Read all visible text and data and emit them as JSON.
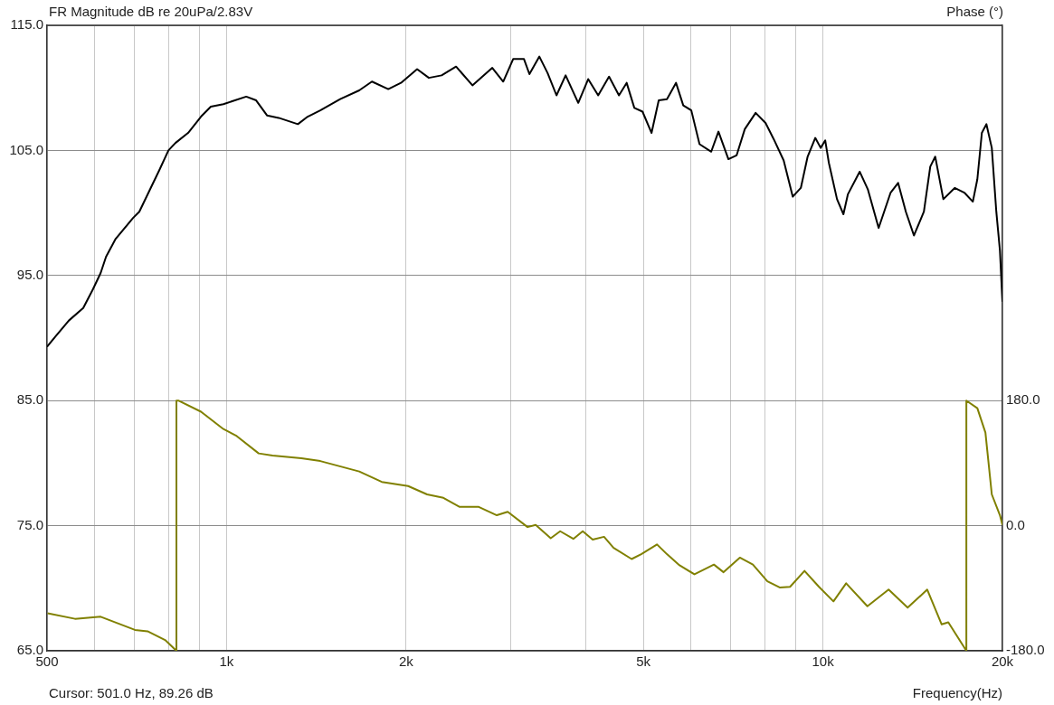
{
  "chart_data": {
    "type": "line",
    "ylabel": "FR Magnitude dB re 20uPa/2.83V",
    "y2label": "Phase (°)",
    "xlabel": "Frequency(Hz)",
    "annotations": [
      "Cursor:  501.0 Hz, 89.26 dB"
    ],
    "log": "x",
    "grid": true,
    "legend": false,
    "marker": "none",
    "line_style": "solid",
    "xlim": [
      500,
      20000
    ],
    "xticks": [
      {
        "value": 500,
        "label": "500"
      },
      {
        "value": 600,
        "label": null
      },
      {
        "value": 700,
        "label": null
      },
      {
        "value": 800,
        "label": null
      },
      {
        "value": 900,
        "label": null
      },
      {
        "value": 1000,
        "label": "1k"
      },
      {
        "value": 2000,
        "label": "2k"
      },
      {
        "value": 3000,
        "label": null
      },
      {
        "value": 4000,
        "label": null
      },
      {
        "value": 5000,
        "label": "5k"
      },
      {
        "value": 6000,
        "label": null
      },
      {
        "value": 7000,
        "label": null
      },
      {
        "value": 8000,
        "label": null
      },
      {
        "value": 9000,
        "label": null
      },
      {
        "value": 10000,
        "label": "10k"
      },
      {
        "value": 20000,
        "label": "20k"
      }
    ],
    "ylim": [
      65,
      115
    ],
    "yticks": [
      {
        "value": 65,
        "label": "65.0"
      },
      {
        "value": 75,
        "label": "75.0"
      },
      {
        "value": 85,
        "label": "85.0"
      },
      {
        "value": 95,
        "label": "95.0"
      },
      {
        "value": 105,
        "label": "105.0"
      },
      {
        "value": 115,
        "label": "115.0"
      }
    ],
    "y2lim": [
      -180,
      720
    ],
    "y2ticks": [
      {
        "value": -180,
        "label": "-180.0"
      },
      {
        "value": 0,
        "label": "0.0"
      },
      {
        "value": 180,
        "label": "180.0"
      }
    ],
    "series": [
      {
        "color": "#000000",
        "x": [
          500,
          516,
          544,
          575,
          597,
          615,
          628,
          651,
          697,
          714,
          748,
          771,
          799,
          821,
          862,
          906,
          941,
          988,
          1079,
          1121,
          1169,
          1223,
          1317,
          1368,
          1436,
          1551,
          1669,
          1753,
          1867,
          1961,
          2087,
          2184,
          2294,
          2426,
          2584,
          2790,
          2910,
          3024,
          3153,
          3220,
          3346,
          3453,
          3575,
          3703,
          3888,
          4040,
          4199,
          4379,
          4550,
          4687,
          4828,
          4983,
          5160,
          5305,
          5476,
          5671,
          5832,
          6016,
          6210,
          6497,
          6681,
          6943,
          7165,
          7396,
          7713,
          8013,
          8270,
          8594,
          8900,
          9183,
          9427,
          9709,
          9915,
          10090,
          10233,
          10560,
          10824,
          11014,
          11525,
          11892,
          12401,
          12981,
          13371,
          13774,
          14211,
          14769,
          15136,
          15430,
          15920,
          16634,
          17286,
          17841,
          18154,
          18473,
          18798,
          19196,
          19533,
          19808,
          20000
        ],
        "values": [
          89.3,
          90.1,
          91.4,
          92.4,
          93.9,
          95.2,
          96.5,
          97.9,
          99.6,
          100.1,
          102.1,
          103.4,
          105.0,
          105.6,
          106.4,
          107.7,
          108.5,
          108.7,
          109.3,
          109.0,
          107.8,
          107.6,
          107.1,
          107.7,
          108.2,
          109.1,
          109.8,
          110.5,
          109.9,
          110.4,
          111.5,
          110.8,
          111.0,
          111.7,
          110.2,
          111.6,
          110.5,
          112.3,
          112.3,
          111.1,
          112.5,
          111.2,
          109.4,
          111.0,
          108.8,
          110.7,
          109.4,
          110.9,
          109.4,
          110.4,
          108.4,
          108.1,
          106.4,
          109.0,
          109.1,
          110.4,
          108.6,
          108.2,
          105.5,
          104.9,
          106.5,
          104.3,
          104.6,
          106.7,
          108.0,
          107.2,
          105.9,
          104.2,
          101.3,
          102.0,
          104.5,
          106.0,
          105.2,
          105.8,
          104.0,
          101.1,
          99.9,
          101.5,
          103.3,
          101.9,
          98.8,
          101.6,
          102.4,
          100.1,
          98.2,
          100.1,
          103.7,
          104.5,
          101.1,
          102.0,
          101.6,
          100.9,
          102.7,
          106.4,
          107.1,
          105.2,
          100.1,
          97.0,
          92.9
        ]
      },
      {
        "color": "#808000",
        "axis": "y2",
        "x": [
          501,
          557,
          615,
          702,
          737,
          790,
          824,
          824,
          830,
          906,
          988,
          1040,
          1132,
          1194,
          1335,
          1436,
          1669,
          1821,
          2016,
          2169,
          2310,
          2460,
          2648,
          2839,
          2961,
          3197,
          3299,
          3496,
          3626,
          3815,
          3956,
          4111,
          4295,
          4456,
          4778,
          4959,
          5270,
          5476,
          5749,
          6089,
          6565,
          6814,
          7256,
          7631,
          8070,
          8475,
          8809,
          9314,
          9849,
          10415,
          10938,
          11874,
          12888,
          13870,
          14960,
          15818,
          16228,
          17400,
          17400,
          18154,
          18729,
          19196,
          19808,
          20000
        ],
        "values": [
          -126,
          -134,
          -131,
          -150,
          -152,
          -165,
          -180,
          180,
          180,
          164,
          139,
          129,
          104,
          101,
          97,
          93,
          78,
          63,
          57,
          45,
          40,
          27,
          27,
          15,
          20,
          -2,
          1,
          -18,
          -8,
          -19,
          -8,
          -20,
          -16,
          -32,
          -48,
          -41,
          -27,
          -41,
          -57,
          -70,
          -56,
          -67,
          -46,
          -56,
          -80,
          -89,
          -88,
          -65,
          -88,
          -109,
          -83,
          -116,
          -92,
          -118,
          -92,
          -142,
          -139,
          -180,
          180,
          169,
          134,
          45,
          15,
          1
        ]
      }
    ]
  }
}
